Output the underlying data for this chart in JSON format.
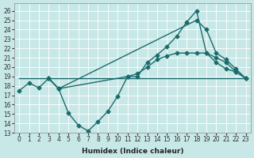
{
  "xlabel": "Humidex (Indice chaleur)",
  "xlim": [
    -0.5,
    23.5
  ],
  "ylim": [
    13,
    26.8
  ],
  "yticks": [
    13,
    14,
    15,
    16,
    17,
    18,
    19,
    20,
    21,
    22,
    23,
    24,
    25,
    26
  ],
  "xticks": [
    0,
    1,
    2,
    3,
    4,
    5,
    6,
    7,
    8,
    9,
    10,
    11,
    12,
    13,
    14,
    15,
    16,
    17,
    18,
    19,
    20,
    21,
    22,
    23
  ],
  "bg_color": "#c8e8e8",
  "line_color": "#1a6b6b",
  "series": [
    {
      "x": [
        0,
        1,
        2,
        3,
        4,
        5,
        6,
        7,
        8,
        9,
        10,
        11,
        12,
        13,
        14,
        15,
        16,
        17,
        18,
        19,
        20,
        21,
        22,
        23
      ],
      "y": [
        17.5,
        18.3,
        17.8,
        18.8,
        17.7,
        15.1,
        13.8,
        13.2,
        14.2,
        15.3,
        16.9,
        19.0,
        19.0,
        20.5,
        21.3,
        22.2,
        23.3,
        24.8,
        26.0,
        21.5,
        20.5,
        19.8,
        19.5,
        18.8
      ],
      "marker": "D",
      "markersize": 2.5,
      "lw": 1.0
    },
    {
      "x": [
        3,
        4,
        18,
        19,
        20,
        21,
        22,
        23
      ],
      "y": [
        18.8,
        17.7,
        25.0,
        24.0,
        21.5,
        20.8,
        19.8,
        18.8
      ],
      "marker": "D",
      "markersize": 2.5,
      "lw": 1.0
    },
    {
      "x": [
        3,
        4,
        11,
        12,
        13,
        14,
        15,
        16,
        17,
        18,
        19,
        20,
        21,
        22,
        23
      ],
      "y": [
        18.8,
        17.7,
        19.0,
        19.3,
        20.0,
        20.8,
        21.2,
        21.5,
        21.5,
        21.5,
        21.5,
        21.0,
        20.5,
        19.5,
        18.8
      ],
      "marker": "D",
      "markersize": 2.5,
      "lw": 1.0
    },
    {
      "x": [
        0,
        23
      ],
      "y": [
        18.8,
        18.8
      ],
      "marker": null,
      "markersize": 0,
      "lw": 1.0
    }
  ]
}
